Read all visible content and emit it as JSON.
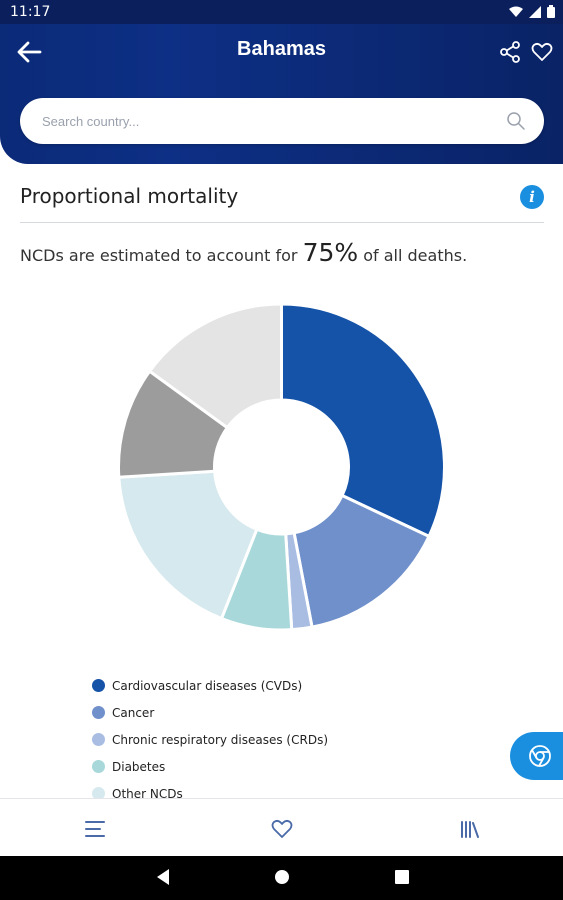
{
  "status_bar": {
    "time": "11:17"
  },
  "header": {
    "title": "Bahamas"
  },
  "search": {
    "placeholder": "Search country..."
  },
  "section": {
    "title": "Proportional mortality",
    "summary_prefix": "NCDs are estimated to account for",
    "summary_value": "75%",
    "summary_suffix": "of all deaths."
  },
  "chart_data": {
    "type": "pie",
    "categories": [
      "Cardiovascular diseases (CVDs)",
      "Cancer",
      "Chronic respiratory diseases (CRDs)",
      "Diabetes",
      "Other NCDs",
      "",
      ""
    ],
    "values": [
      32,
      15,
      2,
      7,
      18,
      11,
      15
    ],
    "colors": [
      "#1553a8",
      "#7090cb",
      "#a9bde3",
      "#a8d8da",
      "#d6e9ee",
      "#9c9c9c",
      "#e4e4e4"
    ],
    "legend": "bottom-left"
  },
  "legend_items": [
    {
      "label": "Cardiovascular diseases (CVDs)",
      "color": "#1553a8"
    },
    {
      "label": "Cancer",
      "color": "#7090cb"
    },
    {
      "label": "Chronic respiratory diseases (CRDs)",
      "color": "#a9bde3"
    },
    {
      "label": "Diabetes",
      "color": "#a8d8da"
    },
    {
      "label": "Other NCDs",
      "color": "#d6e9ee"
    }
  ],
  "colors": {
    "header": "#0b2a78",
    "accent": "#1a8fe0",
    "icon": "#4a6aa8"
  },
  "icons": {
    "header": [
      "arrow-left-icon",
      "share-icon",
      "heart-icon"
    ],
    "search": "search-icon",
    "info": "info-icon",
    "fab": "chrome-icon",
    "bottom_nav": [
      "menu-icon",
      "heart-icon",
      "library-icon"
    ]
  }
}
